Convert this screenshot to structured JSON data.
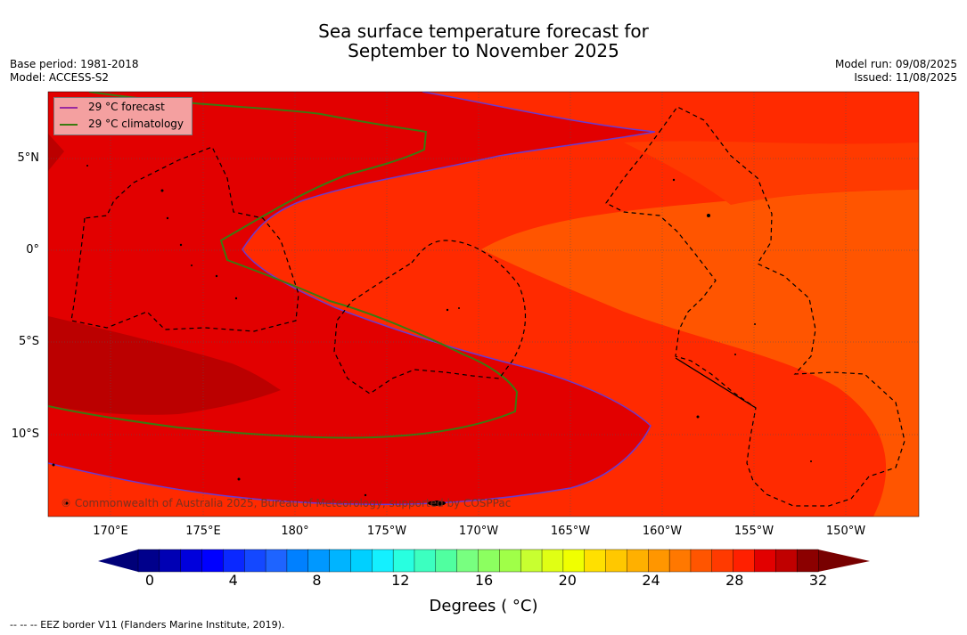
{
  "title": {
    "line1": "Sea surface temperature forecast for",
    "line2": "September to November 2025"
  },
  "meta": {
    "base_period": "Base period: 1981-2018",
    "model": "Model: ACCESS-S2",
    "model_run": "Model run: 09/08/2025",
    "issued": "Issued: 11/08/2025"
  },
  "map": {
    "lon_labels": [
      "170°E",
      "175°E",
      "180°",
      "175°W",
      "170°W",
      "165°W",
      "160°W",
      "155°W",
      "150°W"
    ],
    "lat_labels": [
      "5°N",
      "0°",
      "5°S",
      "10°S"
    ],
    "grid": true,
    "legend": {
      "items": [
        {
          "label": "29 °C  forecast",
          "color": "#9a2aa0"
        },
        {
          "label": "29 °C  climatology",
          "color": "#3a7a10"
        }
      ]
    },
    "copyright": "© Commonwealth of Australia 2025, Bureau of Meteorology, supported by COSPPac",
    "colors": {
      "sst_28_29": "#ff2a00",
      "sst_29_30": "#e20000",
      "sst_30_31": "#bb0000",
      "sst_27_28": "#ff5500"
    }
  },
  "colorbar": {
    "ticks": [
      "0",
      "4",
      "8",
      "12",
      "16",
      "20",
      "24",
      "28",
      "32"
    ],
    "title": "Degrees ( °C)",
    "colors": [
      "#00008c",
      "#0000b4",
      "#0000dc",
      "#0000ff",
      "#0a28ff",
      "#1448ff",
      "#1e64ff",
      "#0080ff",
      "#0098ff",
      "#00b4ff",
      "#00d0ff",
      "#14f0ff",
      "#28ffe0",
      "#3cffc0",
      "#50ffa0",
      "#78ff80",
      "#8cff60",
      "#a0ff48",
      "#c8ff30",
      "#e0ff14",
      "#f0ff00",
      "#ffe000",
      "#ffc800",
      "#ffb000",
      "#ff9600",
      "#ff7800",
      "#ff5500",
      "#ff3a00",
      "#ff2000",
      "#e20000",
      "#c00000",
      "#8c0000"
    ],
    "min_color": "#000078",
    "max_color": "#780000"
  },
  "footer": "--  --  -- EEZ border V11 (Flanders Marine Institute, 2019)."
}
